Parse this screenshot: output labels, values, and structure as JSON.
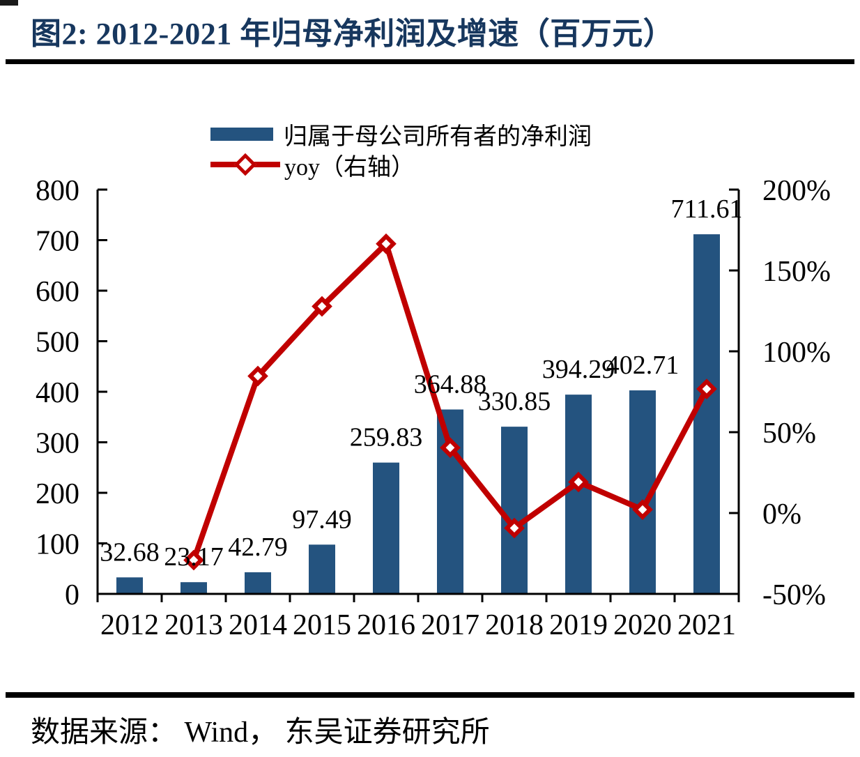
{
  "title": "图2:  2012-2021 年归母净利润及增速（百万元）",
  "source": "数据来源： Wind， 东吴证券研究所",
  "legend": {
    "items": [
      {
        "label": "归属于母公司所有者的净利润",
        "swatch": "bar",
        "color": "#24537F"
      },
      {
        "label": "yoy（右轴）",
        "swatch": "line-diamond",
        "color": "#C00000"
      }
    ]
  },
  "colors": {
    "bar": "#24537F",
    "line": "#C00000",
    "title": "#17375E",
    "axis": "#000000"
  },
  "chart_data": {
    "type": "bar+line",
    "title": "2012-2021 年归母净利润及增速（百万元）",
    "categories": [
      "2012",
      "2013",
      "2014",
      "2015",
      "2016",
      "2017",
      "2018",
      "2019",
      "2020",
      "2021"
    ],
    "series": [
      {
        "name": "归属于母公司所有者的净利润",
        "type": "bar",
        "axis": "left",
        "color": "#24537F",
        "values": [
          32.68,
          23.17,
          42.79,
          97.49,
          259.83,
          364.88,
          330.85,
          394.29,
          402.71,
          711.61
        ],
        "data_labels": [
          "32.68",
          "23.17",
          "42.79",
          "97.49",
          "259.83",
          "364.88",
          "330.85",
          "394.29",
          "402.71",
          "711.61"
        ]
      },
      {
        "name": "yoy（右轴）",
        "type": "line",
        "axis": "right",
        "color": "#C00000",
        "marker": "diamond",
        "unit": "%",
        "values": [
          null,
          -29.1,
          84.7,
          127.8,
          166.5,
          40.4,
          -9.3,
          19.2,
          2.1,
          76.7
        ]
      }
    ],
    "left_axis": {
      "min": 0,
      "max": 800,
      "step": 100,
      "tick_labels": [
        "0",
        "100",
        "200",
        "300",
        "400",
        "500",
        "600",
        "700",
        "800"
      ]
    },
    "right_axis": {
      "min": -50,
      "max": 200,
      "step": 50,
      "tick_labels": [
        "-50%",
        "0%",
        "50%",
        "100%",
        "150%",
        "200%"
      ]
    },
    "grid": false,
    "legend_position": "top"
  }
}
